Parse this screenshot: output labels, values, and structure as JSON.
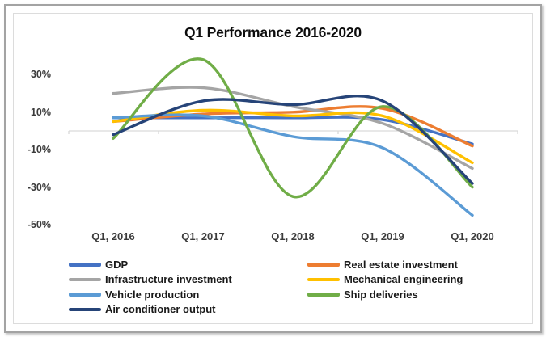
{
  "frame": {
    "outer_border_color": "#a3a3a3",
    "inner_border_color": "#dcdcdc",
    "background": "#ffffff"
  },
  "chart_data": {
    "type": "line",
    "smoothed": true,
    "title": "Q1 Performance 2016-2020",
    "xlabel": "",
    "ylabel": "",
    "categories": [
      "Q1, 2016",
      "Q1, 2017",
      "Q1, 2018",
      "Q1, 2019",
      "Q1, 2020"
    ],
    "y_ticks": [
      "30%",
      "10%",
      "-10%",
      "-30%",
      "-50%"
    ],
    "y_tick_values": [
      30,
      10,
      -10,
      -30,
      -50
    ],
    "ylim": [
      -50,
      40
    ],
    "grid": "zero-axis-line-only",
    "axis_color": "#d9d9d9",
    "legend_position": "bottom-two-columns",
    "series": [
      {
        "name": "GDP",
        "color": "#4472C4",
        "values": [
          7,
          7,
          7,
          6,
          -7
        ]
      },
      {
        "name": "Real estate investment",
        "color": "#ED7D31",
        "values": [
          5,
          9,
          10,
          12,
          -8
        ]
      },
      {
        "name": "Infrastructure investment",
        "color": "#A5A5A5",
        "values": [
          20,
          23,
          13,
          4,
          -20
        ]
      },
      {
        "name": "Mechanical engineering",
        "color": "#FFC000",
        "values": [
          5,
          11,
          8,
          8,
          -17
        ]
      },
      {
        "name": "Vehicle production",
        "color": "#5B9BD5",
        "values": [
          7,
          8,
          -3,
          -9,
          -45
        ]
      },
      {
        "name": "Ship deliveries",
        "color": "#70AD47",
        "values": [
          -4,
          38,
          -35,
          13,
          -30
        ]
      },
      {
        "name": "Air conditioner output",
        "color": "#264478",
        "values": [
          -2,
          16,
          14,
          16,
          -28
        ]
      }
    ]
  }
}
